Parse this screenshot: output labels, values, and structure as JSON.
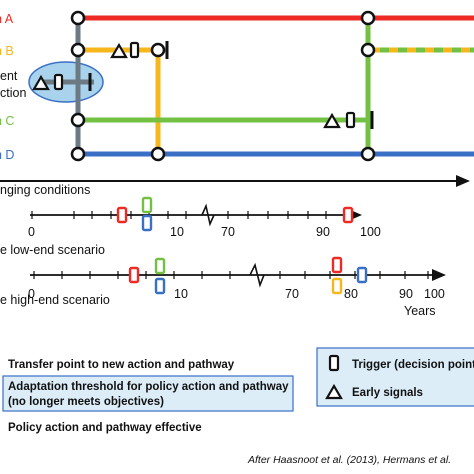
{
  "colors": {
    "action_a": "#ee2a24",
    "action_b": "#f5b71b",
    "current_policy": "#6c7a84",
    "action_c": "#74c043",
    "action_d": "#3a6fc6",
    "current_highlight": "#a9d3ec",
    "legend_box": "#dcedf8",
    "black": "#111111"
  },
  "pathways": {
    "labels": {
      "action_a": "n A",
      "action_b": "n B",
      "current_line1": "ent",
      "current_line2": "ction",
      "action_c": "n C",
      "action_d": "n D"
    },
    "changing_conditions": "nging conditions"
  },
  "scenarios": {
    "low": {
      "label": "e low-end scenario",
      "ticks": [
        "0",
        "10",
        "70",
        "90",
        "100"
      ]
    },
    "high": {
      "label": "e high-end scenario",
      "ticks": [
        "0",
        "10",
        "70",
        "80",
        "90",
        "100"
      ],
      "unit": "Years"
    }
  },
  "legend": {
    "transfer": "Transfer point to new action and pathway",
    "threshold_line1": "Adaptation threshold for policy action and pathway",
    "threshold_line2": "(no longer meets objectives)",
    "effective": "Policy action and pathway effective",
    "trigger": "Trigger (decision point",
    "early": "Early signals"
  },
  "source": "After Haasnoot et al. (2013), Hermans et al."
}
